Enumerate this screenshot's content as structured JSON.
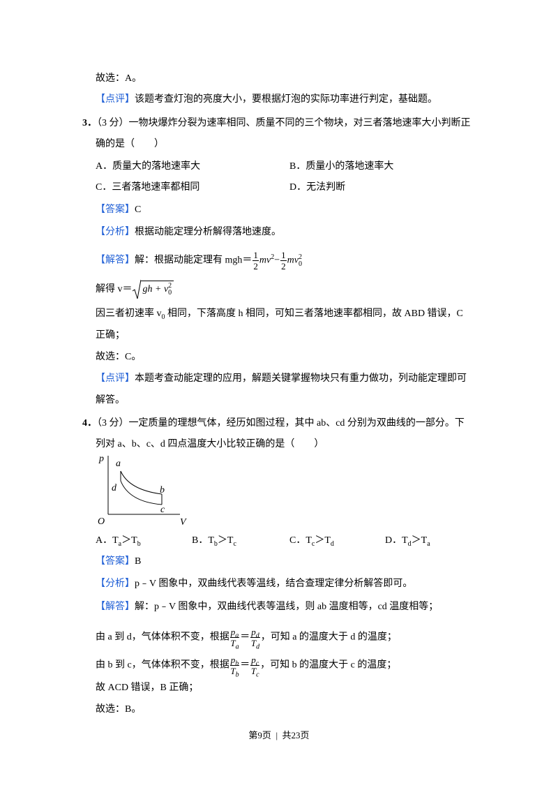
{
  "q2": {
    "conclusion": "故选：A。",
    "review_tag": "【点评】",
    "review": "该题考查灯泡的亮度大小，要根据灯泡的实际功率进行判定，基础题。"
  },
  "q3": {
    "number": "3．",
    "stem": [
      "（3 分）一物块爆炸分裂为速率相同、质量不同的三个物块，对三者落地速率大小判断正",
      "确的是（　　）"
    ],
    "options": [
      "A．质量大的落地速率大",
      "B．质量小的落地速率大",
      "C．三者落地速率都相同",
      "D．无法判断"
    ],
    "answer_tag": "【答案】",
    "answer": "C",
    "analysis_tag": "【分析】",
    "analysis": "根据动能定理分析解得落地速度。",
    "solution_tag": "【解答】",
    "solution_intro": "解：根据动能定理有 mgh＝",
    "energy_eq": {
      "frac1_num": "1",
      "frac1_den": "2",
      "term1": "mv",
      "term1_sup": "2",
      "minus": "−",
      "frac2_num": "1",
      "frac2_den": "2",
      "term2": "mv",
      "term2_sup": "2",
      "term2_sub": "0"
    },
    "velocity_intro": "解得 v＝",
    "velocity_root": "gh + v",
    "velocity_sup": "2",
    "velocity_sub": "0",
    "reason_a": "因三者初速率 v",
    "reason_sub": "0",
    "reason_b": " 相同，下落高度 h 相同，可知三者落地速率都相同，故 ABD 错误，C",
    "reason_c": "正确；",
    "conclusion": "故选：C。",
    "review_tag": "【点评】",
    "review": [
      "本题考查动能定理的应用，解题关键掌握物块只有重力做功，列动能定理即可",
      "解答。"
    ]
  },
  "q4": {
    "number": "4．",
    "stem": [
      "（3 分）一定质量的理想气体，经历如图过程，其中 ab、cd 分别为双曲线的一部分。下",
      "列对 a、b、c、d 四点温度大小比较正确的是（　　）"
    ],
    "figure": {
      "p": "p",
      "a": "a",
      "d": "d",
      "b": "b",
      "c": "c",
      "origin": "O",
      "v": "V"
    },
    "options": [
      {
        "prefix": "A．T",
        "sub1": "a",
        "mid": "＞T",
        "sub2": "b"
      },
      {
        "prefix": "B．T",
        "sub1": "b",
        "mid": "＞T",
        "sub2": "c"
      },
      {
        "prefix": "C．T",
        "sub1": "c",
        "mid": "＞T",
        "sub2": "d"
      },
      {
        "prefix": "D．T",
        "sub1": "d",
        "mid": "＞T",
        "sub2": "a"
      }
    ],
    "answer_tag": "【答案】",
    "answer": "B",
    "analysis_tag": "【分析】",
    "analysis": "p﹣V 图象中，双曲线代表等温线，结合查理定律分析解答即可。",
    "solution_tag": "【解答】",
    "solution_intro": "解：p﹣V 图象中，双曲线代表等温线，则 ab 温度相等，cd 温度相等；",
    "step1": {
      "before": "由 a 到 d，气体体积不变，根据",
      "num1": "p",
      "num1_sub": "a",
      "den1": "T",
      "den1_sub": "a",
      "eq": "＝",
      "num2": "p",
      "num2_sub": "d",
      "den2": "T",
      "den2_sub": "d",
      "after": "，可知 a 的温度大于 d 的温度；"
    },
    "step2": {
      "before": "由 b 到 c，气体体积不变，根据",
      "num1": "p",
      "num1_sub": "b",
      "den1": "T",
      "den1_sub": "b",
      "eq": "＝",
      "num2": "p",
      "num2_sub": "c",
      "den2": "T",
      "den2_sub": "c",
      "after": "，可知 b 的温度大于 c 的温度；"
    },
    "verdict": "故 ACD 错误，B 正确；",
    "conclusion": "故选：B。"
  },
  "footer": {
    "page": "第9页",
    "separator": "|",
    "total": "共23页"
  }
}
